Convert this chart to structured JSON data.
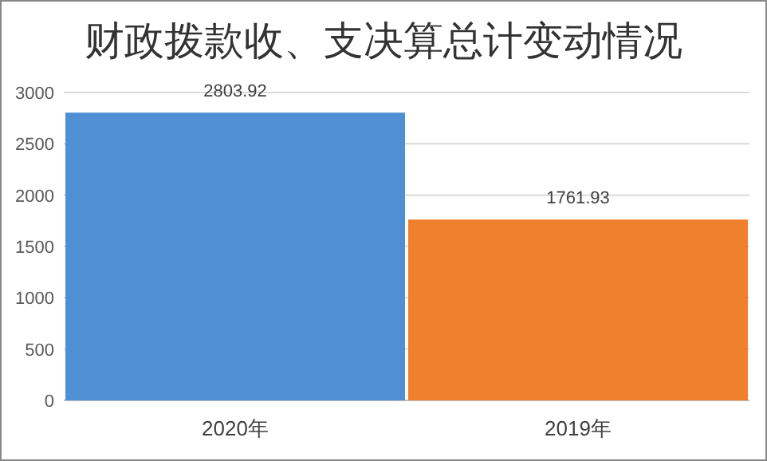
{
  "chart_data": {
    "type": "bar",
    "title": "财政拨款收、支决算总计变动情况",
    "categories": [
      "2020年",
      "2019年"
    ],
    "values": [
      2803.92,
      1761.93
    ],
    "colors": [
      "#4f8fd4",
      "#f07f2e"
    ],
    "ylim": [
      0,
      3000
    ],
    "yticks": [
      0,
      500,
      1000,
      1500,
      2000,
      2500,
      3000
    ],
    "grid": "y",
    "data_labels": true
  }
}
